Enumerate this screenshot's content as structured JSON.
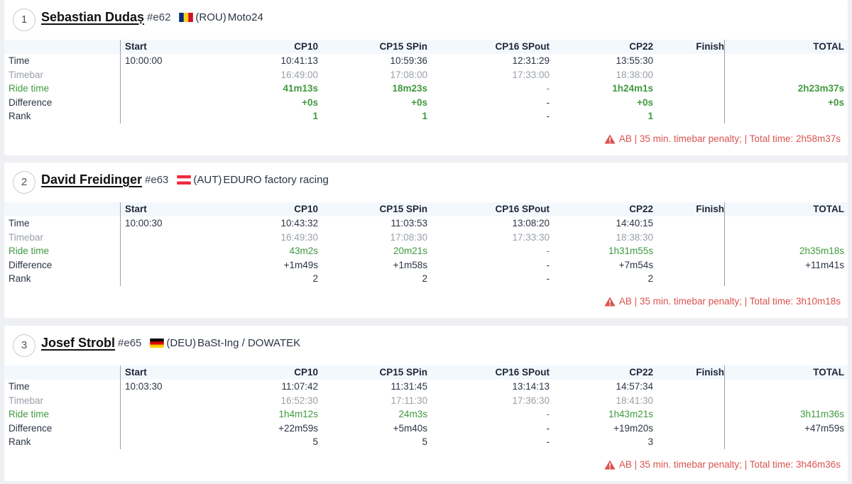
{
  "columns": [
    "Start",
    "CP10",
    "CP15 SPin",
    "CP16 SPout",
    "CP22",
    "Finish",
    "TOTAL"
  ],
  "row_labels": [
    "Time",
    "Timebar",
    "Ride time",
    "Difference",
    "Rank"
  ],
  "riders": [
    {
      "position": "1",
      "name": "Sebastian Dudaș",
      "bib": "#e62",
      "country": "(ROU)",
      "team": "Moto24",
      "flag_colors": [
        "#002b7f",
        "#fcd116",
        "#ce1126"
      ],
      "times": [
        "10:00:00",
        "10:41:13",
        "10:59:36",
        "12:31:29",
        "13:55:30",
        "",
        ""
      ],
      "timebar": [
        "",
        "16:49:00",
        "17:08:00",
        "17:33:00",
        "18:38:00",
        "",
        ""
      ],
      "ride": [
        "",
        "41m13s",
        "18m23s",
        "-",
        "1h24m1s",
        "",
        "2h23m37s"
      ],
      "diff": [
        "",
        "+0s",
        "+0s",
        "-",
        "+0s",
        "",
        "+0s"
      ],
      "rank": [
        "",
        "1",
        "1",
        "-",
        "1",
        "",
        ""
      ],
      "penalty": "AB | 35 min. timebar penalty; | Total time: 2h58m37s"
    },
    {
      "position": "2",
      "name": "David Freidinger",
      "bib": "#e63",
      "country": "(AUT)",
      "team": "EDURO factory racing",
      "flag_colors": [
        "#ed2939",
        "#ffffff",
        "#ed2939"
      ],
      "times": [
        "10:00:30",
        "10:43:32",
        "11:03:53",
        "13:08:20",
        "14:40:15",
        "",
        ""
      ],
      "timebar": [
        "",
        "16:49:30",
        "17:08:30",
        "17:33:30",
        "18:38:30",
        "",
        ""
      ],
      "ride": [
        "",
        "43m2s",
        "20m21s",
        "-",
        "1h31m55s",
        "",
        "2h35m18s"
      ],
      "diff": [
        "",
        "+1m49s",
        "+1m58s",
        "-",
        "+7m54s",
        "",
        "+11m41s"
      ],
      "rank": [
        "",
        "2",
        "2",
        "-",
        "2",
        "",
        ""
      ],
      "penalty": "AB | 35 min. timebar penalty; | Total time: 3h10m18s"
    },
    {
      "position": "3",
      "name": "Josef Strobl",
      "bib": "#e65",
      "country": "(DEU)",
      "team": "BaSt-Ing / DOWATEK",
      "flag_colors": [
        "#000000",
        "#dd0000",
        "#ffce00"
      ],
      "times": [
        "10:03:30",
        "11:07:42",
        "11:31:45",
        "13:14:13",
        "14:57:34",
        "",
        ""
      ],
      "timebar": [
        "",
        "16:52:30",
        "17:11:30",
        "17:36:30",
        "18:41:30",
        "",
        ""
      ],
      "ride": [
        "",
        "1h4m12s",
        "24m3s",
        "-",
        "1h43m21s",
        "",
        "3h11m36s"
      ],
      "diff": [
        "",
        "+22m59s",
        "+5m40s",
        "-",
        "+19m20s",
        "",
        "+47m59s"
      ],
      "rank": [
        "",
        "5",
        "5",
        "-",
        "3",
        "",
        ""
      ],
      "penalty": "AB | 35 min. timebar penalty; | Total time: 3h46m36s"
    }
  ]
}
